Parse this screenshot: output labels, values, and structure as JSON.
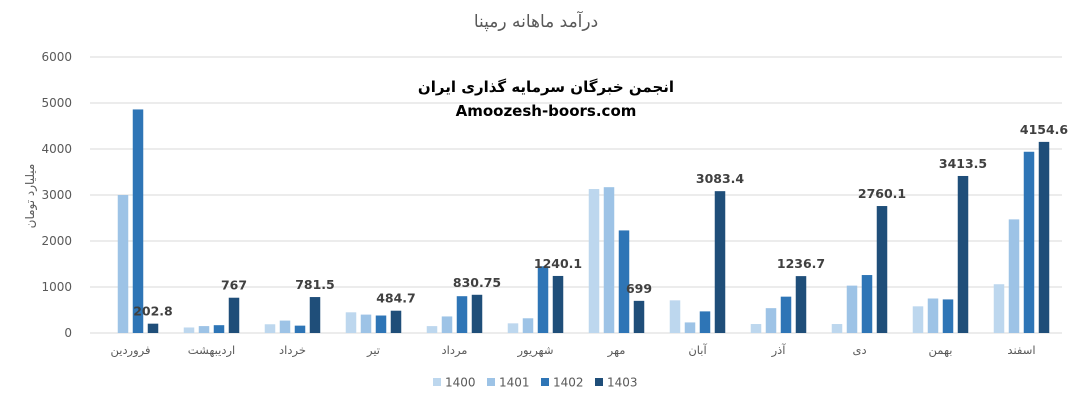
{
  "chart_data": {
    "type": "bar",
    "title": "درآمد ماهانه رمپنا",
    "ylabel": "میلیارد تومان",
    "ylim": [
      0,
      6000
    ],
    "yticks": [
      0,
      1000,
      2000,
      3000,
      4000,
      5000,
      6000
    ],
    "grid": true,
    "legend_position": "bottom",
    "categories": [
      "فروردین",
      "اردیبهشت",
      "خرداد",
      "تیر",
      "مرداد",
      "شهریور",
      "مهر",
      "آبان",
      "آذر",
      "دی",
      "بهمن",
      "اسفند"
    ],
    "series": [
      {
        "name": "1400",
        "color": "#bdd7ee",
        "values": [
          0,
          120,
          190,
          450,
          150,
          210,
          3130,
          710,
          195,
          195,
          580,
          1060
        ]
      },
      {
        "name": "1401",
        "color": "#9dc3e6",
        "values": [
          3000,
          150,
          270,
          400,
          360,
          320,
          3170,
          230,
          540,
          1030,
          750,
          2470
        ]
      },
      {
        "name": "1402",
        "color": "#2e75b6",
        "values": [
          4860,
          170,
          160,
          380,
          800,
          1450,
          2230,
          470,
          790,
          1260,
          730,
          3940
        ]
      },
      {
        "name": "1403",
        "color": "#1f4e79",
        "values": [
          202.8,
          767,
          781.5,
          484.7,
          830.75,
          1240.1,
          699,
          3083.4,
          1236.7,
          2760.1,
          3413.5,
          4154.6
        ]
      }
    ],
    "data_labels": {
      "series": "1403",
      "labels": [
        "202.8",
        "767",
        "781.5",
        "484.7",
        "830.75",
        "1240.1",
        "699",
        "3083.4",
        "1236.7",
        "2760.1",
        "3413.5",
        "4154.6"
      ]
    }
  },
  "watermark": {
    "line1": "انجمن خبرگان سرمایه گذاری ایران",
    "line2": "Amoozesh-boors.com"
  }
}
